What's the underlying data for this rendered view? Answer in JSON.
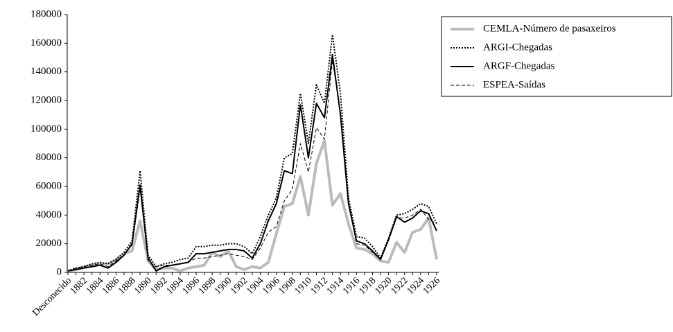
{
  "chart_data": {
    "type": "line",
    "categories": [
      "Desconecido",
      null,
      "1882",
      null,
      "1884",
      null,
      "1886",
      null,
      "1888",
      null,
      "1890",
      null,
      "1892",
      null,
      "1894",
      null,
      "1896",
      null,
      "1898",
      null,
      "1900",
      null,
      "1902",
      null,
      "1904",
      null,
      "1906",
      null,
      "1908",
      null,
      "1910",
      null,
      "1912",
      null,
      "1914",
      null,
      "1916",
      null,
      "1918",
      null,
      "1920",
      null,
      "1922",
      null,
      "1924",
      null,
      "1926"
    ],
    "series": [
      {
        "name": "CEMLA-Número de pasaxeiros",
        "color": "#bbbbbb",
        "width": 4,
        "dash": "none",
        "values": [
          1000,
          2000,
          4000,
          5000,
          6000,
          6000,
          9000,
          13000,
          15000,
          36000,
          8000,
          2000,
          3000,
          3000,
          1000,
          3000,
          4000,
          5000,
          14000,
          11000,
          15000,
          4000,
          2000,
          4000,
          3000,
          7000,
          27000,
          46000,
          48000,
          67000,
          40000,
          76000,
          92000,
          47000,
          55000,
          34000,
          17000,
          16000,
          13000,
          8000,
          7000,
          21000,
          14000,
          28000,
          30000,
          38000,
          9000
        ]
      },
      {
        "name": "ARGI-Chegadas",
        "color": "#000000",
        "width": 2,
        "dash": "2,2",
        "values": [
          1000,
          3000,
          4000,
          6000,
          7000,
          6000,
          9000,
          14000,
          22000,
          71000,
          12000,
          4000,
          6000,
          7000,
          9000,
          10000,
          18000,
          18000,
          19000,
          19000,
          20000,
          20000,
          18000,
          13000,
          25000,
          40000,
          52000,
          80000,
          83000,
          125000,
          90000,
          131000,
          118000,
          166000,
          125000,
          52000,
          25000,
          24000,
          18000,
          10000,
          24000,
          40000,
          41000,
          44000,
          48000,
          46000,
          34000
        ]
      },
      {
        "name": "ARGF-Chegadas",
        "color": "#000000",
        "width": 2,
        "dash": "none",
        "values": [
          1000,
          2000,
          3000,
          4000,
          5000,
          3000,
          7000,
          12000,
          20000,
          61000,
          10000,
          1000,
          4000,
          5000,
          6000,
          7000,
          13000,
          13000,
          14000,
          15000,
          16000,
          16000,
          15000,
          10000,
          20000,
          36000,
          48000,
          71000,
          69000,
          117000,
          80000,
          118000,
          108000,
          152000,
          110000,
          48000,
          22000,
          20000,
          15000,
          9000,
          23000,
          39000,
          35000,
          38000,
          43000,
          41000,
          29000
        ]
      },
      {
        "name": "ESPEA-Saídas",
        "color": "#000000",
        "width": 1,
        "dash": "5,3",
        "values": [
          1000,
          3000,
          4000,
          5000,
          6000,
          4000,
          8000,
          12000,
          19000,
          58000,
          8000,
          4000,
          5000,
          5000,
          6000,
          7000,
          10000,
          10000,
          11000,
          12000,
          13000,
          12000,
          11000,
          9000,
          17000,
          28000,
          32000,
          50000,
          58000,
          90000,
          70000,
          101000,
          93000,
          148000,
          112000,
          50000,
          20000,
          19000,
          14000,
          9000,
          22000,
          38000,
          38000,
          40000,
          44000,
          37000,
          34000
        ]
      }
    ],
    "ylim": [
      0,
      180000
    ],
    "yticks": [
      0,
      20000,
      40000,
      60000,
      80000,
      100000,
      120000,
      140000,
      160000,
      180000
    ],
    "legend": "top-right"
  }
}
